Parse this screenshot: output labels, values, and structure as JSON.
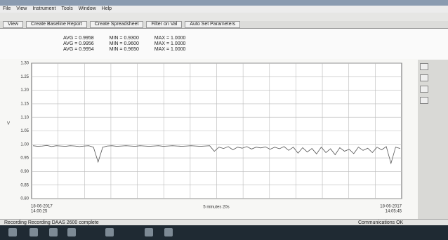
{
  "menu": [
    "File",
    "View",
    "Instrument",
    "Tools",
    "Window",
    "Help"
  ],
  "tabs": [
    "View",
    "Create Baseline Report",
    "Create Spreadsheet",
    "Filter on Val",
    "Auto Set Parameters"
  ],
  "stats": [
    [
      "AVG = 0.9958",
      "MIN = 0.9300",
      "MAX = 1.0000"
    ],
    [
      "AVG = 0.9956",
      "MIN = 0.9600",
      "MAX = 1.0000"
    ],
    [
      "AVG = 0.9954",
      "MIN = 0.9650",
      "MAX = 1.0000"
    ]
  ],
  "chart_data": {
    "type": "line",
    "y_label": "V",
    "x_start_date": "18-06-2017",
    "x_start_time": "14:00:25",
    "x_span_label": "5 minutes 20s",
    "x_end_date": "18-06-2017",
    "x_end_time": "14:05:45",
    "ylim": [
      0.8,
      1.3
    ],
    "yticks": [
      {
        "value": 0.8,
        "label": "0.80"
      },
      {
        "value": 0.85,
        "label": "0.85"
      },
      {
        "value": 0.9,
        "label": "0.90"
      },
      {
        "value": 0.95,
        "label": "0.95"
      },
      {
        "value": 1,
        "label": "1.00"
      },
      {
        "value": 1.05,
        "label": "1.05"
      },
      {
        "value": 1.1,
        "label": "1.10"
      },
      {
        "value": 1.15,
        "label": "1.15"
      },
      {
        "value": 1.2,
        "label": "1.20"
      },
      {
        "value": 1.25,
        "label": "1.25"
      },
      {
        "value": 1.3,
        "label": "1.30"
      }
    ],
    "grid": true,
    "series": [
      {
        "color": "#555555",
        "values": [
          0.995,
          0.993,
          0.994,
          0.996,
          0.992,
          0.995,
          0.994,
          0.993,
          0.995,
          0.994,
          0.992,
          0.994,
          0.995,
          0.99,
          0.935,
          0.99,
          0.994,
          0.995,
          0.993,
          0.994,
          0.995,
          0.994,
          0.993,
          0.995,
          0.994,
          0.993,
          0.994,
          0.995,
          0.993,
          0.994,
          0.995,
          0.994,
          0.993,
          0.994,
          0.995,
          0.994,
          0.993,
          0.994,
          0.995,
          0.975,
          0.99,
          0.985,
          0.992,
          0.98,
          0.99,
          0.986,
          0.992,
          0.983,
          0.99,
          0.987,
          0.991,
          0.982,
          0.99,
          0.984,
          0.992,
          0.978,
          0.99,
          0.968,
          0.988,
          0.972,
          0.985,
          0.965,
          0.99,
          0.97,
          0.984,
          0.962,
          0.988,
          0.975,
          0.982,
          0.966,
          0.99,
          0.978,
          0.986,
          0.97,
          0.99,
          0.98,
          0.992,
          0.93,
          0.99,
          0.985
        ]
      }
    ]
  },
  "status": {
    "left": "Recording Recording DAAS 2600 complete",
    "right": "Communications OK"
  }
}
